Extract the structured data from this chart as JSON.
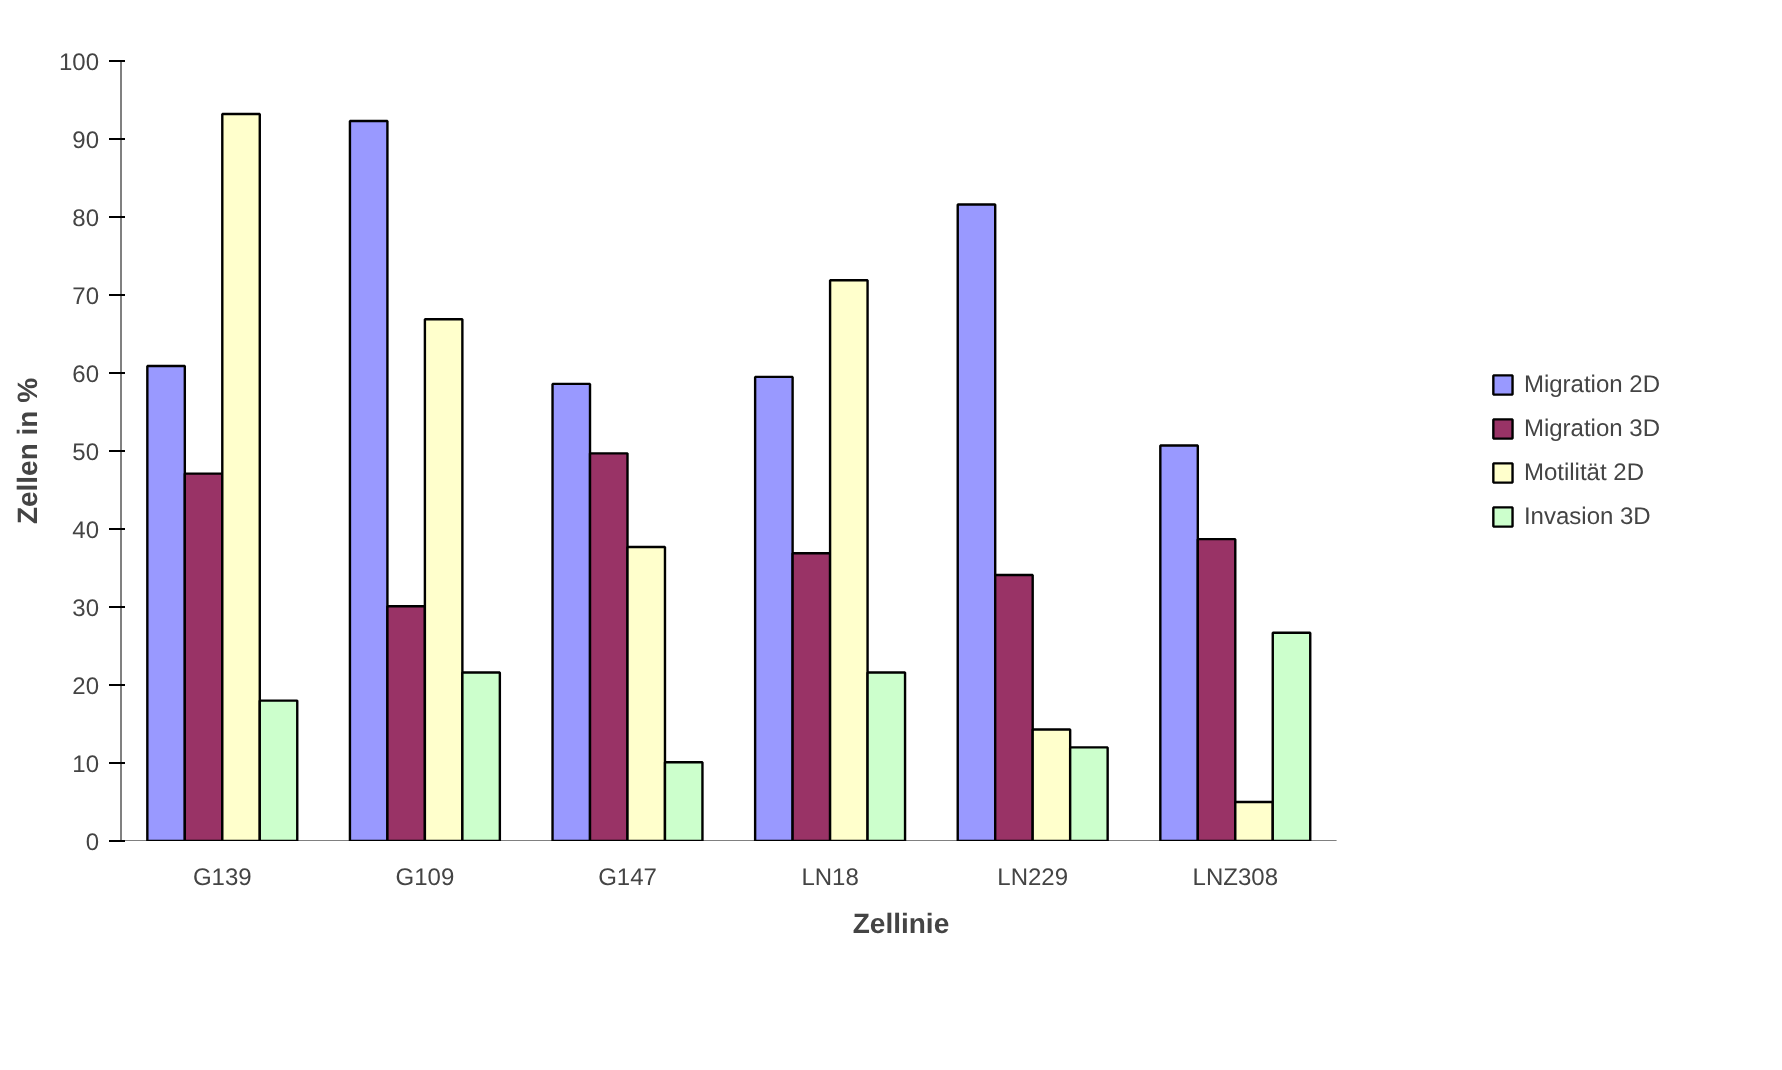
{
  "chart_data": {
    "type": "bar",
    "xlabel": "Zellinie",
    "ylabel": "Zellen in %",
    "categories": [
      "G139",
      "G109",
      "G147",
      "LN18",
      "LN229",
      "LNZ308"
    ],
    "series": [
      {
        "name": "Migration 2D",
        "color": "#9999ff",
        "values": [
          60.9,
          92.3,
          58.6,
          59.5,
          81.6,
          50.7
        ]
      },
      {
        "name": "Migration 3D",
        "color": "#993366",
        "values": [
          47.1,
          30.1,
          49.7,
          36.9,
          34.1,
          38.7
        ]
      },
      {
        "name": "Motilität 2D",
        "color": "#ffffcc",
        "values": [
          93.2,
          66.9,
          37.7,
          71.9,
          14.3,
          5.0
        ]
      },
      {
        "name": "Invasion 3D",
        "color": "#ccffcc",
        "values": [
          18.0,
          21.6,
          10.1,
          21.6,
          12.0,
          26.7
        ]
      }
    ],
    "ylim": [
      0,
      100
    ],
    "yticks": [
      0,
      10,
      20,
      30,
      40,
      50,
      60,
      70,
      80,
      90,
      100
    ],
    "grid": false,
    "legend": "right"
  }
}
